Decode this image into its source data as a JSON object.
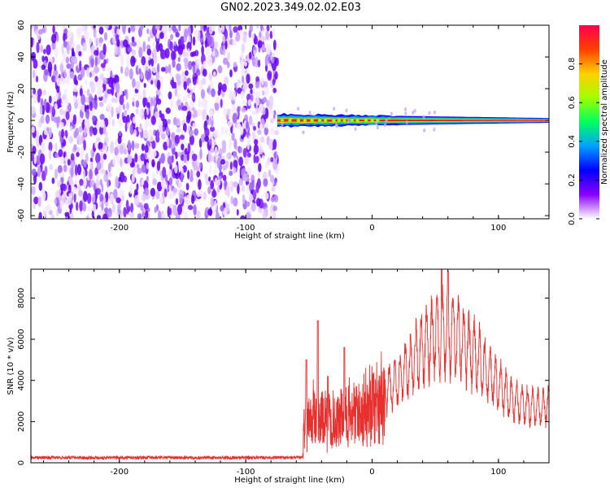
{
  "title": "GN02.2023.349.02.02.E03",
  "chart_data": [
    {
      "type": "heatmap",
      "xlabel": "Height of straight line (km)",
      "ylabel": "Frequency (Hz)",
      "xlim": [
        -270,
        140
      ],
      "ylim": [
        -62,
        60
      ],
      "xticks": [
        -200,
        -100,
        0,
        100
      ],
      "yticks": [
        -60,
        -40,
        -20,
        0,
        20,
        40,
        60
      ],
      "colorbar": {
        "label": "Normalized spectral amplitude",
        "range": [
          0,
          1
        ],
        "ticks": [
          0.0,
          0.2,
          0.4,
          0.6,
          0.8
        ],
        "colormap": [
          "#ffffff",
          "#8a00ff",
          "#0000ff",
          "#00a0ff",
          "#00ff60",
          "#a0ff00",
          "#ffd000",
          "#ff4000",
          "#ff0050"
        ]
      },
      "noise_region_x": [
        -270,
        -75
      ],
      "signal": {
        "x_start": -75,
        "center_freq": 0,
        "band_start_halfwidth": 4,
        "band_end_halfwidth": 1.5
      }
    },
    {
      "type": "line",
      "xlabel": "Height of straight line (km)",
      "ylabel": "SNR (10 * v/v)",
      "xlim": [
        -270,
        140
      ],
      "ylim": [
        0,
        9400
      ],
      "xticks": [
        -200,
        -100,
        0,
        100
      ],
      "yticks": [
        0,
        2000,
        4000,
        6000,
        8000
      ],
      "color": "#e8302e",
      "envelope": {
        "x": [
          -270,
          -55,
          -54,
          -45,
          -40,
          -30,
          -20,
          -10,
          0,
          10,
          20,
          30,
          40,
          50,
          60,
          70,
          80,
          90,
          100,
          110,
          120,
          130,
          140
        ],
        "y": [
          250,
          250,
          2500,
          3200,
          2800,
          2600,
          3000,
          3400,
          3800,
          4400,
          5000,
          6000,
          7200,
          8000,
          8200,
          7600,
          6800,
          5800,
          4800,
          4000,
          3600,
          3400,
          3600
        ]
      },
      "peaks": [
        {
          "x": -52,
          "y": 5000
        },
        {
          "x": -43,
          "y": 6900
        },
        {
          "x": -35,
          "y": 4200
        },
        {
          "x": -22,
          "y": 5600
        },
        {
          "x": 55,
          "y": 9400
        },
        {
          "x": 60,
          "y": 9300
        }
      ]
    }
  ]
}
